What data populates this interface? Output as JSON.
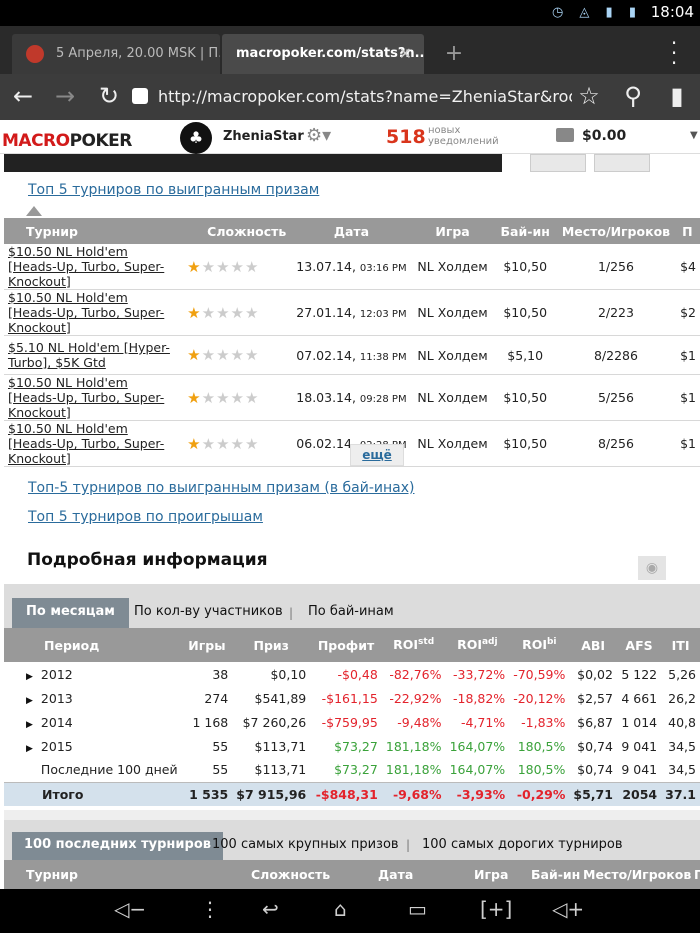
{
  "status_bar": {
    "time": "18:04",
    "icons": [
      "clock-icon",
      "wifi-icon",
      "signal-icon",
      "battery-icon"
    ]
  },
  "browser": {
    "tabs": [
      {
        "label": "5 Апреля, 20.00 MSK | П..."
      },
      {
        "label": "macropoker.com/stats?n..."
      }
    ],
    "url": "http://macropoker.com/stats?name=ZheniaStar&room=",
    "new_tab_label": "+"
  },
  "site": {
    "logo_macro": "MACRO",
    "logo_poker": "POKER",
    "username": "ZheniaStar",
    "notifications_count": "518",
    "notifications_label_1": "новых",
    "notifications_label_2": "уведомлений",
    "balance": "$0.00"
  },
  "top5": {
    "link_title": "Топ 5 турниров по выигранным призам",
    "headers": [
      "Турнир",
      "Сложность",
      "Дата",
      "Игра",
      "Бай-ин",
      "Место/Игроков",
      "П"
    ],
    "rows": [
      {
        "name": "$10.50 NL Hold'em [Heads-Up, Turbo, Super-Knockout]",
        "rating": 1,
        "date": "13.07.14,",
        "time": "03:16 PM",
        "game": "NL Холдем",
        "buyin": "$10,50",
        "place": "1/256",
        "prize": "$4"
      },
      {
        "name": "$10.50 NL Hold'em [Heads-Up, Turbo, Super-Knockout]",
        "rating": 1,
        "date": "27.01.14,",
        "time": "12:03 PM",
        "game": "NL Холдем",
        "buyin": "$10,50",
        "place": "2/223",
        "prize": "$2"
      },
      {
        "name": "$5.10 NL Hold'em [Hyper-Turbo], $5K Gtd",
        "rating": 0.5,
        "date": "07.02.14,",
        "time": "11:38 PM",
        "game": "NL Холдем",
        "buyin": "$5,10",
        "place": "8/2286",
        "prize": "$1"
      },
      {
        "name": "$10.50 NL Hold'em [Heads-Up, Turbo, Super-Knockout]",
        "rating": 1,
        "date": "18.03.14,",
        "time": "09:28 PM",
        "game": "NL Холдем",
        "buyin": "$10,50",
        "place": "5/256",
        "prize": "$1"
      },
      {
        "name": "$10.50 NL Hold'em [Heads-Up, Turbo, Super-Knockout]",
        "rating": 1,
        "date": "06.02.14,",
        "time": "02:28 PM",
        "game": "NL Холдем",
        "buyin": "$10,50",
        "place": "8/256",
        "prize": "$1"
      }
    ],
    "more_label": "ещё",
    "link_buyins": "Топ-5 турниров по выигранным призам (в бай-инах)",
    "link_losses": "Топ 5 турниров по проигрышам"
  },
  "details": {
    "title": "Подробная информация",
    "tabs": [
      "По месяцам",
      "По кол-ву участников",
      "По бай-инам"
    ],
    "headers": [
      "Период",
      "Игры",
      "Приз",
      "Профит",
      "ROI",
      "ROI",
      "ROI",
      "ABI",
      "AFS",
      "ITI"
    ],
    "header_sups": [
      "std",
      "adj",
      "bi"
    ],
    "rows": [
      {
        "period": "2012",
        "expand": true,
        "games": "38",
        "prize": "$0,10",
        "profit": "-$0,48",
        "roi_std": "-82,76%",
        "roi_adj": "-33,72%",
        "roi_bi": "-70,59%",
        "abi": "$0,02",
        "afs": "5 122",
        "iti": "5,26",
        "sign": "neg"
      },
      {
        "period": "2013",
        "expand": true,
        "games": "274",
        "prize": "$541,89",
        "profit": "-$161,15",
        "roi_std": "-22,92%",
        "roi_adj": "-18,82%",
        "roi_bi": "-20,12%",
        "abi": "$2,57",
        "afs": "4 661",
        "iti": "26,2",
        "sign": "neg"
      },
      {
        "period": "2014",
        "expand": true,
        "games": "1 168",
        "prize": "$7 260,26",
        "profit": "-$759,95",
        "roi_std": "-9,48%",
        "roi_adj": "-4,71%",
        "roi_bi": "-1,83%",
        "abi": "$6,87",
        "afs": "1 014",
        "iti": "40,8",
        "sign": "neg"
      },
      {
        "period": "2015",
        "expand": true,
        "games": "55",
        "prize": "$113,71",
        "profit": "$73,27",
        "roi_std": "181,18%",
        "roi_adj": "164,07%",
        "roi_bi": "180,5%",
        "abi": "$0,74",
        "afs": "9 041",
        "iti": "34,5",
        "sign": "pos"
      },
      {
        "period": "Последние 100 дней",
        "expand": false,
        "games": "55",
        "prize": "$113,71",
        "profit": "$73,27",
        "roi_std": "181,18%",
        "roi_adj": "164,07%",
        "roi_bi": "180,5%",
        "abi": "$0,74",
        "afs": "9 041",
        "iti": "34,5",
        "sign": "pos"
      }
    ],
    "total": {
      "period": "Итого",
      "games": "1 535",
      "prize": "$7 915,96",
      "profit": "-$848,31",
      "roi_std": "-9,68%",
      "roi_adj": "-3,93%",
      "roi_bi": "-0,29%",
      "abi": "$5,71",
      "afs": "2054",
      "iti": "37.1"
    }
  },
  "recent": {
    "tabs": [
      "100 последних турниров",
      "100 самых крупных призов",
      "100 самых дорогих турниров"
    ],
    "headers": [
      "Турнир",
      "Сложность",
      "Дата",
      "Игра",
      "Бай-ин",
      "Место/Игроков",
      "П"
    ]
  },
  "colors": {
    "negative": "#e3232c",
    "positive": "#3aa23a",
    "accent": "#d9351c",
    "header_bg": "#999999"
  }
}
